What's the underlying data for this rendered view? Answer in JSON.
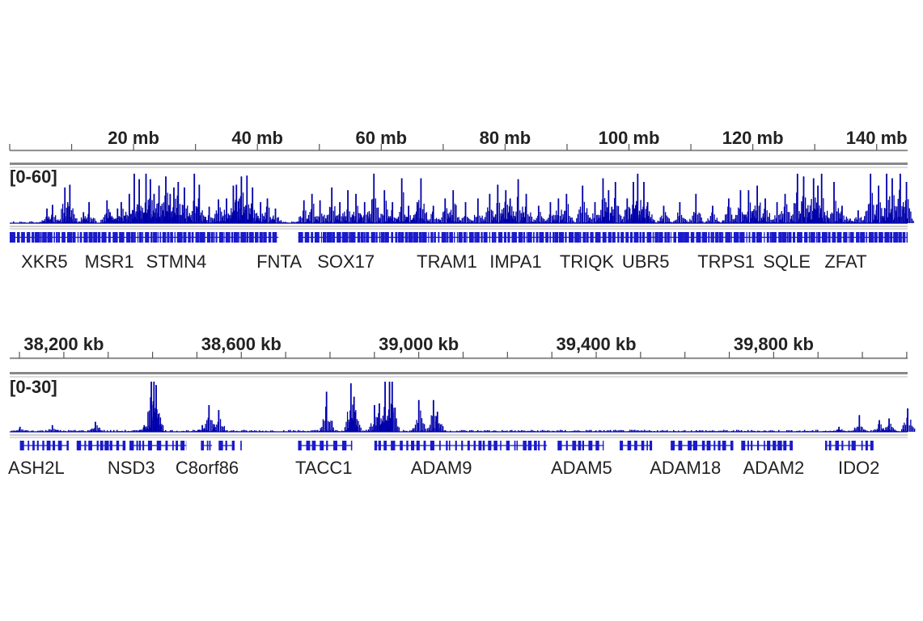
{
  "colors": {
    "signal": "#0000AA",
    "gene": "#1A1ACC",
    "axis": "#555555",
    "divider": "#888888",
    "text": "#222222"
  },
  "chart_data": [
    {
      "type": "bar",
      "track": "genome-wide",
      "xunit": "mb",
      "xlim": [
        0,
        145
      ],
      "ticks": [
        {
          "value": 20,
          "label": "20 mb"
        },
        {
          "value": 40,
          "label": "40 mb"
        },
        {
          "value": 60,
          "label": "60 mb"
        },
        {
          "value": 80,
          "label": "80 mb"
        },
        {
          "value": 100,
          "label": "100 mb"
        },
        {
          "value": 120,
          "label": "120 mb"
        },
        {
          "value": 140,
          "label": "140 mb"
        }
      ],
      "minor_tick_step": 10,
      "data_range_label": "[0-60]",
      "ylim": [
        0,
        60
      ],
      "peaks": [
        [
          6.0,
          16
        ],
        [
          6.9,
          20
        ],
        [
          8.9,
          39
        ],
        [
          9.7,
          42
        ],
        [
          11.9,
          12
        ],
        [
          12.8,
          23
        ],
        [
          15.7,
          25
        ],
        [
          16.2,
          12
        ],
        [
          17.4,
          16
        ],
        [
          18.0,
          23
        ],
        [
          19.3,
          32
        ],
        [
          20.1,
          54
        ],
        [
          20.9,
          48
        ],
        [
          22.0,
          54
        ],
        [
          22.7,
          48
        ],
        [
          23.3,
          32
        ],
        [
          24.1,
          41
        ],
        [
          25.2,
          51
        ],
        [
          25.9,
          32
        ],
        [
          26.5,
          39
        ],
        [
          27.2,
          45
        ],
        [
          28.2,
          39
        ],
        [
          29.8,
          54
        ],
        [
          30.6,
          42
        ],
        [
          32.2,
          18
        ],
        [
          33.7,
          26
        ],
        [
          35.0,
          27
        ],
        [
          36.1,
          41
        ],
        [
          36.6,
          42
        ],
        [
          37.4,
          51
        ],
        [
          38.3,
          52
        ],
        [
          39.2,
          39
        ],
        [
          40.5,
          23
        ],
        [
          41.6,
          27
        ],
        [
          42.9,
          16
        ],
        [
          47.5,
          25
        ],
        [
          48.8,
          32
        ],
        [
          50.1,
          25
        ],
        [
          52.0,
          39
        ],
        [
          53.3,
          23
        ],
        [
          54.6,
          36
        ],
        [
          55.9,
          32
        ],
        [
          57.3,
          23
        ],
        [
          58.8,
          54
        ],
        [
          60.5,
          36
        ],
        [
          61.8,
          23
        ],
        [
          63.3,
          49
        ],
        [
          64.4,
          19
        ],
        [
          65.8,
          23
        ],
        [
          66.4,
          49
        ],
        [
          68.4,
          19
        ],
        [
          70.3,
          27
        ],
        [
          71.6,
          36
        ],
        [
          73.6,
          23
        ],
        [
          75.6,
          27
        ],
        [
          77.5,
          32
        ],
        [
          78.8,
          42
        ],
        [
          80.1,
          36
        ],
        [
          80.8,
          27
        ],
        [
          82.1,
          48
        ],
        [
          83.4,
          32
        ],
        [
          85.4,
          19
        ],
        [
          87.3,
          23
        ],
        [
          88.6,
          27
        ],
        [
          89.9,
          32
        ],
        [
          92.5,
          41
        ],
        [
          94.5,
          23
        ],
        [
          95.8,
          49
        ],
        [
          96.7,
          36
        ],
        [
          97.8,
          45
        ],
        [
          99.7,
          27
        ],
        [
          100.7,
          45
        ],
        [
          101.4,
          54
        ],
        [
          102.4,
          45
        ],
        [
          103.0,
          23
        ],
        [
          105.6,
          19
        ],
        [
          108.2,
          23
        ],
        [
          110.8,
          32
        ],
        [
          113.5,
          19
        ],
        [
          116.1,
          27
        ],
        [
          118.0,
          36
        ],
        [
          119.3,
          36
        ],
        [
          120.7,
          41
        ],
        [
          122.0,
          27
        ],
        [
          123.9,
          23
        ],
        [
          125.2,
          32
        ],
        [
          127.2,
          54
        ],
        [
          128.2,
          51
        ],
        [
          129.8,
          49
        ],
        [
          130.5,
          41
        ],
        [
          131.1,
          54
        ],
        [
          133.1,
          45
        ],
        [
          134.4,
          19
        ],
        [
          135.7,
          5
        ],
        [
          137.0,
          14
        ],
        [
          139.0,
          54
        ],
        [
          140.3,
          41
        ],
        [
          141.6,
          54
        ],
        [
          142.5,
          49
        ],
        [
          143.8,
          54
        ],
        [
          144.8,
          45
        ]
      ],
      "gene_regions": [
        [
          0,
          43.4
        ],
        [
          46.6,
          145
        ]
      ],
      "genes": [
        {
          "name": "XKR5",
          "pos": 5.6
        },
        {
          "name": "MSR1",
          "pos": 16.1
        },
        {
          "name": "STMN4",
          "pos": 26.9
        },
        {
          "name": "FNTA",
          "pos": 43.5
        },
        {
          "name": "SOX17",
          "pos": 54.3
        },
        {
          "name": "TRAM1",
          "pos": 70.6
        },
        {
          "name": "IMPA1",
          "pos": 81.7
        },
        {
          "name": "TRIQK",
          "pos": 93.2
        },
        {
          "name": "UBR5",
          "pos": 102.7
        },
        {
          "name": "TRPS1",
          "pos": 115.7
        },
        {
          "name": "SQLE",
          "pos": 125.5
        },
        {
          "name": "ZFAT",
          "pos": 135.0
        }
      ]
    },
    {
      "type": "bar",
      "track": "zoomed-region",
      "xunit": "kb",
      "xlim": [
        38078,
        40102
      ],
      "ticks": [
        {
          "value": 38200,
          "label": "38,200 kb"
        },
        {
          "value": 38600,
          "label": "38,600 kb"
        },
        {
          "value": 39000,
          "label": "39,000 kb"
        },
        {
          "value": 39400,
          "label": "39,400 kb"
        },
        {
          "value": 39800,
          "label": "39,800 kb"
        }
      ],
      "minor_tick_step": 100,
      "data_range_label": "[0-30]",
      "ylim": [
        0,
        30
      ],
      "peaks": [
        [
          38101,
          3
        ],
        [
          38174,
          4
        ],
        [
          38271,
          6
        ],
        [
          38381,
          4
        ],
        [
          38397,
          30
        ],
        [
          38403,
          30
        ],
        [
          38408,
          28
        ],
        [
          38512,
          4
        ],
        [
          38527,
          16
        ],
        [
          38549,
          13
        ],
        [
          38792,
          24
        ],
        [
          38847,
          29
        ],
        [
          38854,
          21
        ],
        [
          38900,
          16
        ],
        [
          38911,
          17
        ],
        [
          38924,
          30
        ],
        [
          38934,
          30
        ],
        [
          38940,
          30
        ],
        [
          39000,
          19
        ],
        [
          39033,
          19
        ],
        [
          39042,
          12
        ],
        [
          39947,
          3
        ],
        [
          39993,
          10
        ],
        [
          40038,
          7
        ],
        [
          40060,
          8
        ],
        [
          40102,
          14
        ]
      ],
      "gene_regions": [
        [
          38101,
          38211
        ],
        [
          38229,
          38339
        ],
        [
          38348,
          38476
        ],
        [
          38509,
          38534
        ],
        [
          38549,
          38585
        ],
        [
          38598,
          38601
        ],
        [
          38728,
          38850
        ],
        [
          38900,
          39289
        ],
        [
          39313,
          39417
        ],
        [
          39453,
          39526
        ],
        [
          39568,
          39709
        ],
        [
          39727,
          39843
        ],
        [
          39916,
          40025
        ]
      ],
      "genes": [
        {
          "name": "ASH2L",
          "pos": 38138
        },
        {
          "name": "NSD3",
          "pos": 38352
        },
        {
          "name": "C8orf86",
          "pos": 38523
        },
        {
          "name": "TACC1",
          "pos": 38786
        },
        {
          "name": "ADAM9",
          "pos": 39051
        },
        {
          "name": "ADAM5",
          "pos": 39367
        },
        {
          "name": "ADAM18",
          "pos": 39601
        },
        {
          "name": "ADAM2",
          "pos": 39800
        },
        {
          "name": "IDO2",
          "pos": 39992
        }
      ]
    }
  ]
}
